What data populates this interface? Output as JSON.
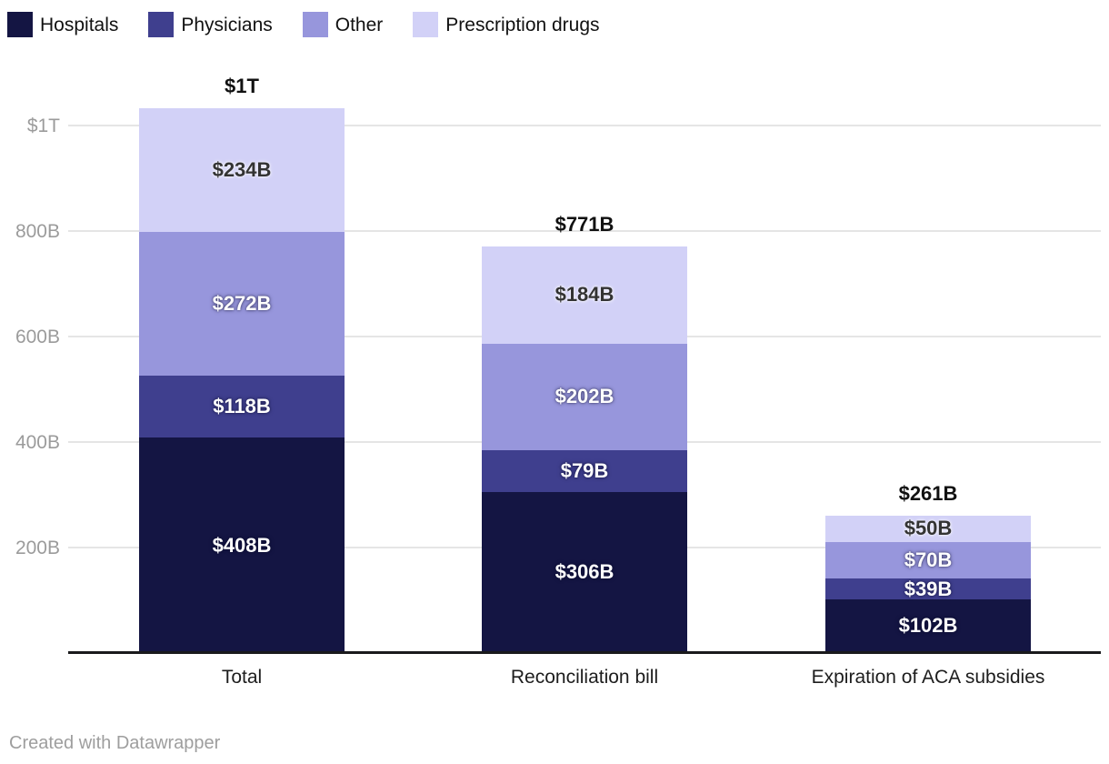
{
  "legend": {
    "items": [
      {
        "label": "Hospitals",
        "color": "#141543"
      },
      {
        "label": "Physicians",
        "color": "#3f3f8e"
      },
      {
        "label": "Other",
        "color": "#9796dc"
      },
      {
        "label": "Prescription drugs",
        "color": "#d2d1f7"
      }
    ]
  },
  "chart_data": {
    "type": "bar",
    "stacked": true,
    "categories": [
      "Total",
      "Reconciliation bill",
      "Expiration of ACA subsidies"
    ],
    "series": [
      {
        "name": "Hospitals",
        "color": "#141543",
        "label_style": "light",
        "values": [
          408,
          306,
          102
        ],
        "value_labels": [
          "$408B",
          "$306B",
          "$102B"
        ]
      },
      {
        "name": "Physicians",
        "color": "#3f3f8e",
        "label_style": "light",
        "values": [
          118,
          79,
          39
        ],
        "value_labels": [
          "$118B",
          "$79B",
          "$39B"
        ]
      },
      {
        "name": "Other",
        "color": "#9796dc",
        "label_style": "light",
        "values": [
          272,
          202,
          70
        ],
        "value_labels": [
          "$272B",
          "$202B",
          "$70B"
        ]
      },
      {
        "name": "Prescription drugs",
        "color": "#d2d1f7",
        "label_style": "dark",
        "values": [
          234,
          184,
          50
        ],
        "value_labels": [
          "$234B",
          "$184B",
          "$50B"
        ]
      }
    ],
    "totals": [
      1032,
      771,
      261
    ],
    "total_labels": [
      "$1T",
      "$771B",
      "$261B"
    ],
    "yticks": [
      {
        "value": 1000,
        "label": "$1T"
      },
      {
        "value": 800,
        "label": "800B"
      },
      {
        "value": 600,
        "label": "600B"
      },
      {
        "value": 400,
        "label": "400B"
      },
      {
        "value": 200,
        "label": "200B"
      }
    ],
    "ylim": [
      0,
      1100
    ],
    "grid": true,
    "legend_position": "top",
    "unit_labels_in_billions": true
  },
  "footer": {
    "text": "Created with Datawrapper"
  }
}
